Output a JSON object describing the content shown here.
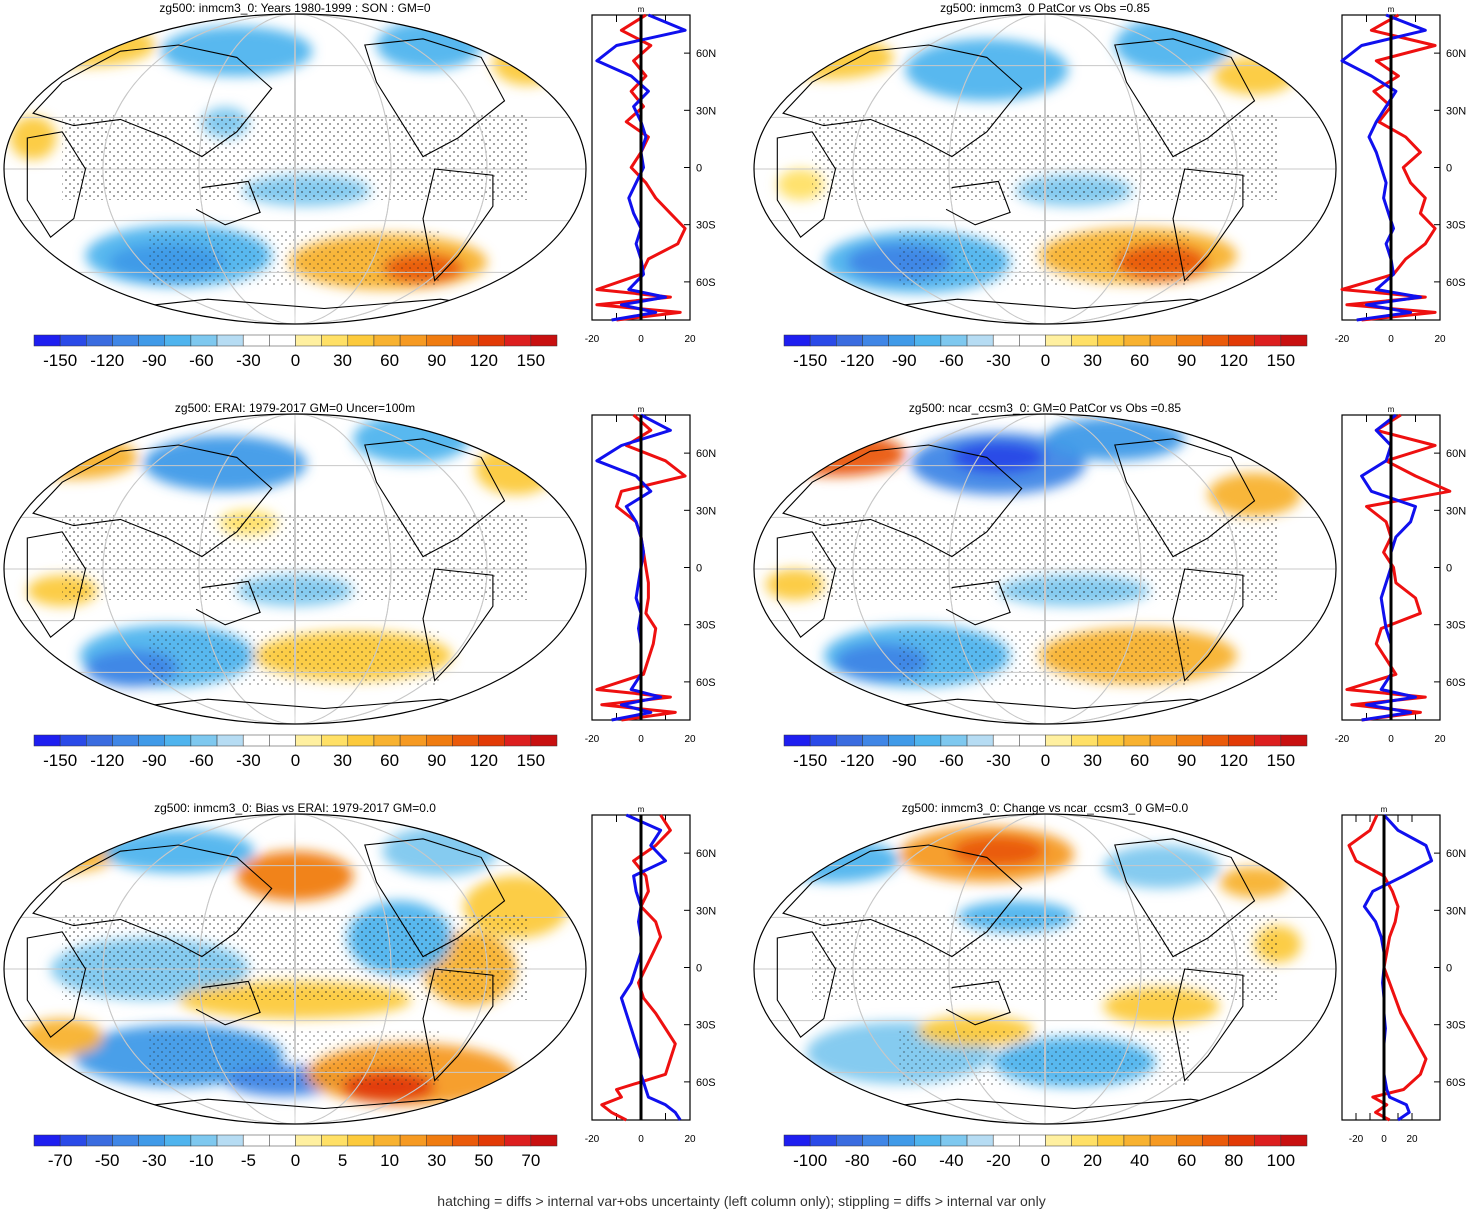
{
  "footer": "hatching = diffs > internal var+obs uncertainty (left column only); stippling = diffs > internal var only",
  "palette": {
    "full": [
      "#1e1ef0",
      "#2a4ae8",
      "#3a6ce0",
      "#3f86e6",
      "#3f9ae8",
      "#4fb4ee",
      "#7ec8ef",
      "#b6dcf3",
      "#ffffff",
      "#ffffff",
      "#fff0a0",
      "#ffe066",
      "#fcca3c",
      "#f8b230",
      "#f69a22",
      "#f07c10",
      "#ea5a0a",
      "#e23a06",
      "#dc1e1e",
      "#c81010"
    ]
  },
  "panels": [
    {
      "id": "p1",
      "title": "zg500: inmcm3_0: Years 1980-1999 : SON : GM=0",
      "colorbar_labels": [
        "-150",
        "-120",
        "-90",
        "-60",
        "-30",
        "0",
        "30",
        "60",
        "90",
        "120",
        "150"
      ],
      "profile": {
        "unit": "m",
        "x_ticks": [
          "-20",
          "0",
          "20"
        ],
        "xlim": [
          -20,
          20
        ],
        "lat_labels": [
          "60N",
          "30N",
          "0",
          "30S",
          "60S"
        ],
        "lat": [
          80,
          72,
          64,
          56,
          48,
          40,
          32,
          24,
          16,
          8,
          0,
          -8,
          -16,
          -24,
          -32,
          -40,
          -48,
          -56,
          -64,
          -68,
          -72,
          -76,
          -80
        ],
        "red": [
          2,
          -8,
          4,
          -3,
          2,
          -4,
          1,
          -6,
          3,
          0,
          -4,
          2,
          6,
          12,
          18,
          15,
          3,
          0,
          -18,
          12,
          -18,
          16,
          -10
        ],
        "blue": [
          3,
          18,
          -10,
          -18,
          -4,
          3,
          -3,
          0,
          2,
          0,
          1,
          -2,
          -5,
          -3,
          0,
          -2,
          0,
          1,
          -5,
          10,
          -8,
          6,
          -12
        ]
      }
    },
    {
      "id": "p2",
      "title": "zg500: inmcm3_0 PatCor vs Obs =0.85",
      "colorbar_labels": [
        "-150",
        "-120",
        "-90",
        "-60",
        "-30",
        "0",
        "30",
        "60",
        "90",
        "120",
        "150"
      ],
      "profile": {
        "unit": "m",
        "x_ticks": [
          "-20",
          "0",
          "20"
        ],
        "xlim": [
          -20,
          20
        ],
        "lat_labels": [
          "60N",
          "30N",
          "0",
          "30S",
          "60S"
        ],
        "lat": [
          80,
          72,
          64,
          56,
          48,
          40,
          32,
          24,
          16,
          8,
          0,
          -8,
          -16,
          -24,
          -32,
          -40,
          -48,
          -56,
          -64,
          -68,
          -72,
          -76,
          -80
        ],
        "red": [
          3,
          -8,
          18,
          -6,
          3,
          -7,
          0,
          -5,
          6,
          12,
          5,
          8,
          14,
          12,
          18,
          14,
          6,
          1,
          -20,
          14,
          -18,
          18,
          -12
        ],
        "blue": [
          -2,
          14,
          -12,
          -20,
          -8,
          2,
          -2,
          -6,
          -9,
          -6,
          -4,
          -2,
          -3,
          -1,
          1,
          -2,
          0,
          1,
          -6,
          12,
          -10,
          8,
          -14
        ]
      }
    },
    {
      "id": "p3",
      "title": "zg500: ERAI: 1979-2017 GM=0 Uncer=100m",
      "colorbar_labels": [
        "-150",
        "-120",
        "-90",
        "-60",
        "-30",
        "0",
        "30",
        "60",
        "90",
        "120",
        "150"
      ],
      "profile": {
        "unit": "m",
        "x_ticks": [
          "-20",
          "0",
          "20"
        ],
        "xlim": [
          -20,
          20
        ],
        "lat_labels": [
          "60N",
          "30N",
          "0",
          "30S",
          "60S"
        ],
        "lat": [
          80,
          72,
          64,
          56,
          48,
          40,
          32,
          24,
          16,
          8,
          0,
          -8,
          -16,
          -24,
          -32,
          -40,
          -48,
          -56,
          -64,
          -68,
          -72,
          -76,
          -80
        ],
        "red": [
          -3,
          4,
          -6,
          10,
          18,
          -8,
          -10,
          -2,
          0,
          1,
          2,
          3,
          3,
          2,
          6,
          5,
          3,
          1,
          -18,
          12,
          -16,
          14,
          -8
        ],
        "blue": [
          0,
          12,
          -8,
          -18,
          -2,
          4,
          -6,
          -2,
          0,
          1,
          0,
          -1,
          -2,
          0,
          -1,
          0,
          0,
          0,
          -4,
          8,
          -8,
          4,
          -12
        ]
      }
    },
    {
      "id": "p4",
      "title": "zg500: ncar_ccsm3_0: GM=0 PatCor vs Obs =0.85",
      "colorbar_labels": [
        "-150",
        "-120",
        "-90",
        "-60",
        "-30",
        "0",
        "30",
        "60",
        "90",
        "120",
        "150"
      ],
      "profile": {
        "unit": "m",
        "x_ticks": [
          "-20",
          "0",
          "20"
        ],
        "xlim": [
          -20,
          20
        ],
        "lat_labels": [
          "60N",
          "30N",
          "0",
          "30S",
          "60S"
        ],
        "lat": [
          80,
          72,
          64,
          56,
          48,
          40,
          32,
          24,
          16,
          8,
          0,
          -8,
          -16,
          -24,
          -32,
          -40,
          -48,
          -56,
          -64,
          -68,
          -72,
          -76,
          -80
        ],
        "red": [
          4,
          -6,
          18,
          -2,
          10,
          24,
          -10,
          -2,
          0,
          -3,
          1,
          2,
          10,
          12,
          -4,
          -6,
          -2,
          2,
          -18,
          14,
          -16,
          12,
          -12
        ],
        "blue": [
          2,
          -6,
          0,
          -2,
          -12,
          -8,
          10,
          8,
          2,
          0,
          0,
          -2,
          -4,
          -3,
          -2,
          0,
          0,
          0,
          -4,
          10,
          -10,
          8,
          -12
        ]
      }
    },
    {
      "id": "p5",
      "title": "zg500: inmcm3_0: Bias vs ERAI: 1979-2017  GM=0.0",
      "colorbar_labels": [
        "-70",
        "-50",
        "-30",
        "-10",
        "-5",
        "0",
        "5",
        "10",
        "30",
        "50",
        "70"
      ],
      "profile": {
        "unit": "m",
        "x_ticks": [
          "-20",
          "0",
          "20"
        ],
        "xlim": [
          -20,
          20
        ],
        "lat_labels": [
          "60N",
          "30N",
          "0",
          "30S",
          "60S"
        ],
        "lat": [
          80,
          72,
          64,
          56,
          48,
          40,
          32,
          24,
          16,
          8,
          0,
          -8,
          -16,
          -24,
          -32,
          -40,
          -48,
          -56,
          -64,
          -68,
          -72,
          -76,
          -80
        ],
        "red": [
          8,
          12,
          6,
          -3,
          2,
          3,
          0,
          6,
          8,
          5,
          2,
          -1,
          1,
          6,
          10,
          14,
          12,
          10,
          -10,
          -8,
          -16,
          -12,
          -6
        ],
        "blue": [
          -6,
          8,
          4,
          10,
          -3,
          -2,
          0,
          -1,
          0,
          0,
          -2,
          -4,
          -8,
          -6,
          -4,
          -2,
          0,
          0,
          2,
          3,
          10,
          14,
          16
        ]
      }
    },
    {
      "id": "p6",
      "title": "zg500: inmcm3_0: Change vs ncar_ccsm3_0 GM=0.0",
      "colorbar_labels": [
        "-100",
        "-80",
        "-60",
        "-40",
        "-20",
        "0",
        "20",
        "40",
        "60",
        "80",
        "100"
      ],
      "profile": {
        "unit": "m",
        "x_ticks": [
          "-20",
          "0",
          "20"
        ],
        "xlim": [
          -30,
          40
        ],
        "lat_labels": [
          "60N",
          "30N",
          "0",
          "30S",
          "60S"
        ],
        "lat": [
          80,
          72,
          64,
          56,
          48,
          40,
          32,
          24,
          16,
          8,
          0,
          -8,
          -16,
          -24,
          -32,
          -40,
          -48,
          -56,
          -64,
          -68,
          -72,
          -76,
          -80
        ],
        "red": [
          -5,
          -10,
          -25,
          -20,
          0,
          6,
          10,
          8,
          4,
          2,
          0,
          4,
          8,
          12,
          18,
          24,
          30,
          26,
          14,
          -8,
          2,
          -6,
          4
        ],
        "blue": [
          0,
          10,
          30,
          34,
          14,
          -8,
          -14,
          -6,
          -2,
          0,
          0,
          -1,
          0,
          0,
          1,
          0,
          0,
          0,
          2,
          4,
          16,
          18,
          10
        ]
      }
    }
  ]
}
